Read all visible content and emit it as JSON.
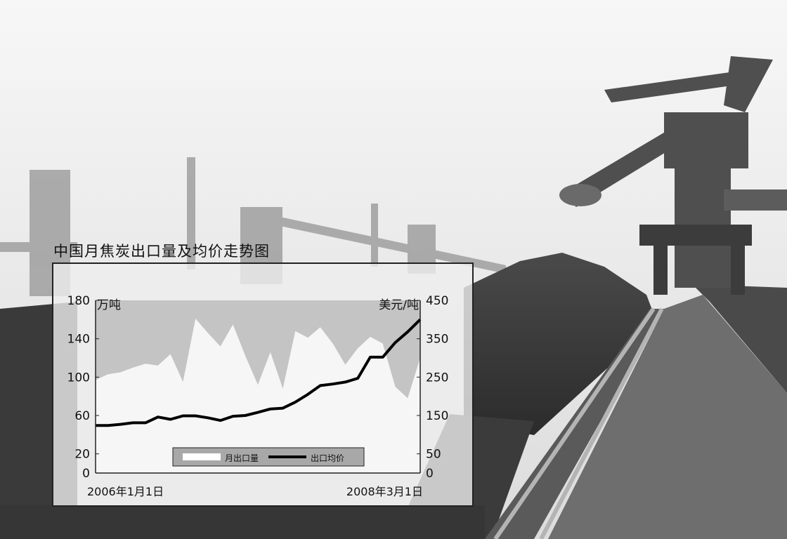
{
  "chart_data": {
    "type": "area-line",
    "title": "中国月焦炭出口量及均价走势图",
    "left_axis": {
      "unit": "万吨",
      "ticks": [
        0,
        20,
        60,
        100,
        140,
        180
      ],
      "range": [
        0,
        180
      ]
    },
    "right_axis": {
      "unit": "美元/吨",
      "ticks": [
        0,
        50,
        150,
        250,
        350,
        450
      ],
      "range": [
        0,
        450
      ]
    },
    "x_axis": {
      "start_label": "2006年1月1日",
      "end_label": "2008年3月1日"
    },
    "legend": {
      "position": "bottom-center",
      "entries": [
        "月出口量",
        "出口均价"
      ]
    },
    "series": [
      {
        "name": "月出口量",
        "axis": "left",
        "style": "area",
        "values": [
          97,
          103,
          105,
          110,
          114,
          112,
          124,
          95,
          161,
          146,
          132,
          155,
          122,
          92,
          126,
          88,
          148,
          141,
          152,
          135,
          113,
          130,
          142,
          135,
          90,
          78,
          120
        ]
      },
      {
        "name": "出口均价",
        "axis": "right",
        "style": "line",
        "values": [
          124,
          124,
          127,
          131,
          131,
          146,
          140,
          149,
          149,
          144,
          137,
          148,
          150,
          158,
          167,
          169,
          185,
          205,
          228,
          232,
          237,
          247,
          302,
          302,
          340,
          368,
          400
        ]
      }
    ]
  }
}
